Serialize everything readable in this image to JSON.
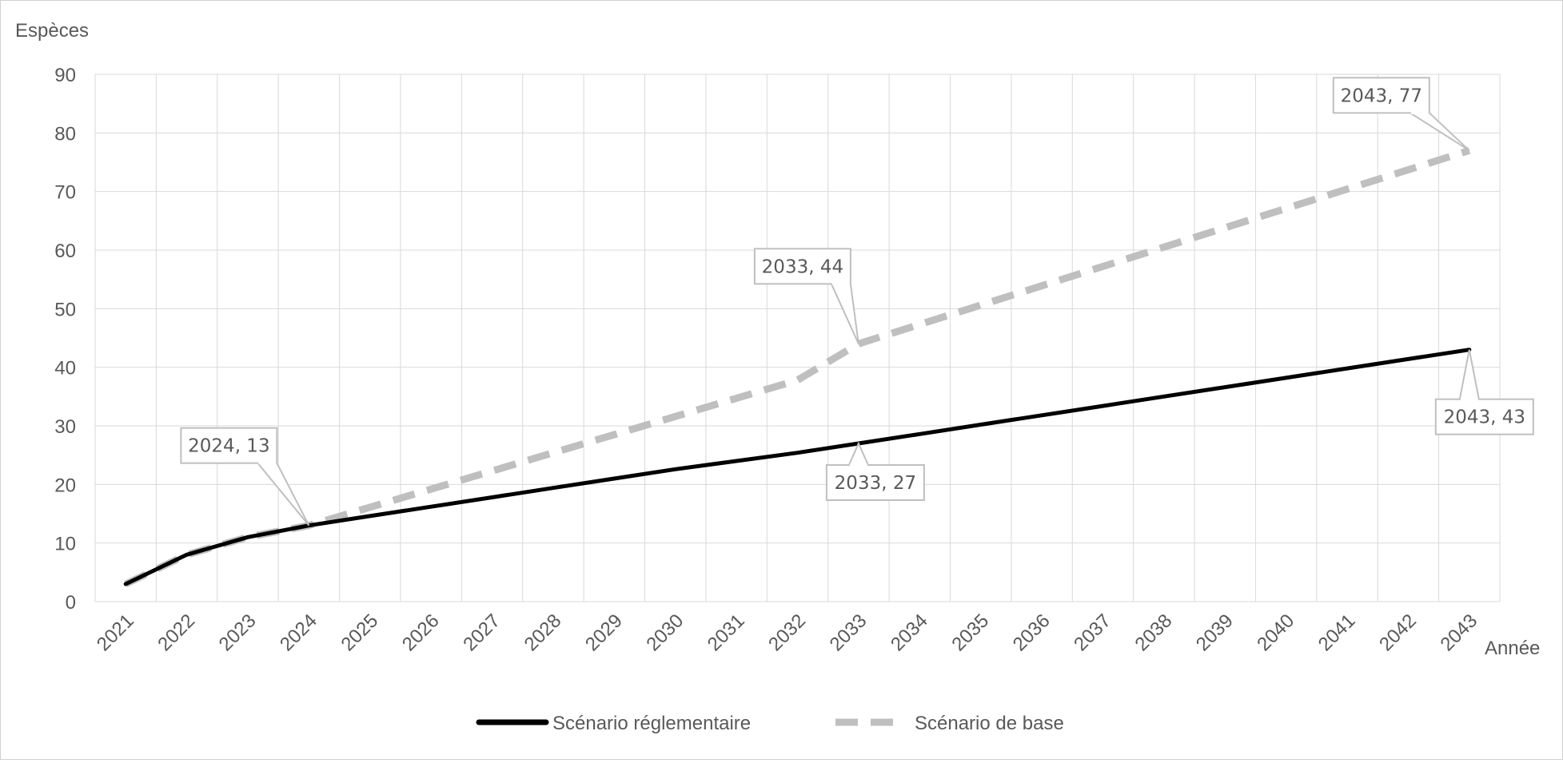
{
  "chart_data": {
    "type": "line",
    "ylabel": "Espèces",
    "xlabel": "Année",
    "ylim": [
      0,
      90
    ],
    "yticks": [
      0,
      10,
      20,
      30,
      40,
      50,
      60,
      70,
      80,
      90
    ],
    "grid": true,
    "legend_position": "bottom",
    "categories": [
      "2021",
      "2022",
      "2023",
      "2024",
      "2025",
      "2026",
      "2027",
      "2028",
      "2029",
      "2030",
      "2031",
      "2032",
      "2033",
      "2034",
      "2035",
      "2036",
      "2037",
      "2038",
      "2039",
      "2040",
      "2041",
      "2042",
      "2043"
    ],
    "series": [
      {
        "name": "Scénario réglementaire",
        "style": "solid",
        "color": "#000000",
        "values": [
          3,
          8,
          11,
          13,
          14.6,
          16.2,
          17.8,
          19.4,
          21,
          22.6,
          24,
          25.4,
          27,
          28.6,
          30.2,
          31.8,
          33.4,
          35,
          36.6,
          38.2,
          39.8,
          41.4,
          43
        ]
      },
      {
        "name": "Scénario de base",
        "style": "dashed",
        "color": "#bfbfbf",
        "values": [
          3,
          8,
          11,
          13,
          16.1,
          19.2,
          22.3,
          25.4,
          28.5,
          31.6,
          34.7,
          37.8,
          44,
          47.3,
          50.6,
          53.9,
          57.2,
          60.5,
          63.8,
          67.1,
          70.4,
          73.7,
          77
        ]
      }
    ],
    "annotations": [
      {
        "text": "2024, 13",
        "x": "2024",
        "y": 13,
        "series": 1
      },
      {
        "text": "2033, 44",
        "x": "2033",
        "y": 44,
        "series": 1
      },
      {
        "text": "2043, 77",
        "x": "2043",
        "y": 77,
        "series": 1
      },
      {
        "text": "2033, 27",
        "x": "2033",
        "y": 27,
        "series": 0
      },
      {
        "text": "2043, 43",
        "x": "2043",
        "y": 43,
        "series": 0
      }
    ]
  }
}
